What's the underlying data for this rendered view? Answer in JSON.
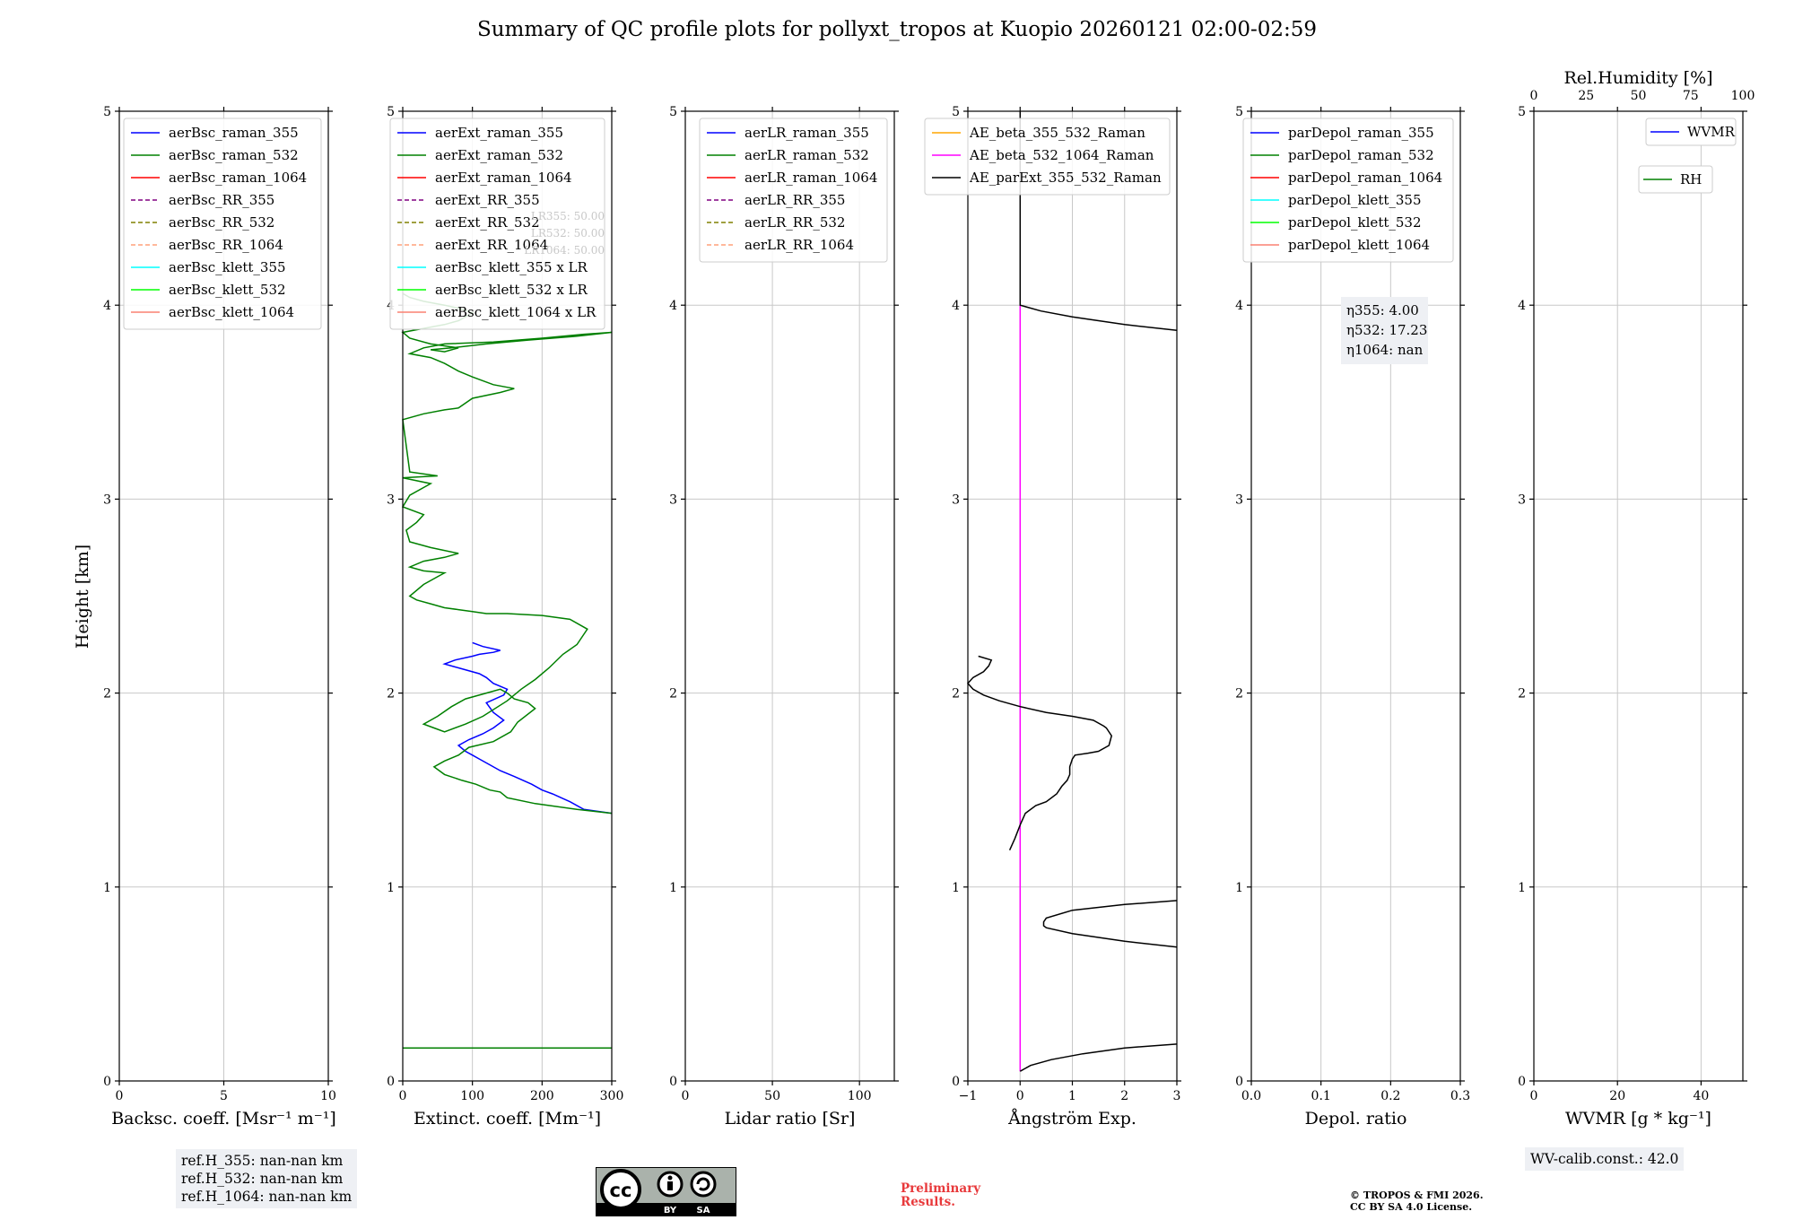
{
  "title": "Summary of QC profile plots for pollyxt_tropos at Kuopio 20260121 02:00-02:59",
  "y_axis_label": "Height [km]",
  "chart_data": [
    {
      "id": "bsc",
      "type": "line",
      "xlabel": "Backsc. coeff. [Msr⁻¹ m⁻¹]",
      "xlim": [
        0,
        10
      ],
      "ylim": [
        0,
        5
      ],
      "xticks": [
        0,
        5,
        10
      ],
      "yticks": [
        0,
        1,
        2,
        3,
        4,
        5
      ],
      "grid": true,
      "legend": {
        "position": "top-right",
        "entries": [
          {
            "label": "aerBsc_raman_355",
            "color": "#0000ff",
            "style": "solid"
          },
          {
            "label": "aerBsc_raman_532",
            "color": "#008000",
            "style": "solid"
          },
          {
            "label": "aerBsc_raman_1064",
            "color": "#ff0000",
            "style": "solid"
          },
          {
            "label": "aerBsc_RR_355",
            "color": "#800080",
            "style": "dashed"
          },
          {
            "label": "aerBsc_RR_532",
            "color": "#808000",
            "style": "dashed"
          },
          {
            "label": "aerBsc_RR_1064",
            "color": "#ffa07a",
            "style": "dashed"
          },
          {
            "label": "aerBsc_klett_355",
            "color": "#00ffff",
            "style": "solid"
          },
          {
            "label": "aerBsc_klett_532",
            "color": "#00ff00",
            "style": "solid"
          },
          {
            "label": "aerBsc_klett_1064",
            "color": "#fa8072",
            "style": "solid"
          }
        ]
      },
      "series": []
    },
    {
      "id": "ext",
      "type": "line",
      "xlabel": "Extinct. coeff. [Mm⁻¹]",
      "xlim": [
        0,
        300
      ],
      "ylim": [
        0,
        5
      ],
      "xticks": [
        0,
        100,
        200,
        300
      ],
      "yticks": [
        0,
        1,
        2,
        3,
        4,
        5
      ],
      "grid": true,
      "legend": {
        "position": "top-right",
        "entries": [
          {
            "label": "aerExt_raman_355",
            "color": "#0000ff",
            "style": "solid"
          },
          {
            "label": "aerExt_raman_532",
            "color": "#008000",
            "style": "solid"
          },
          {
            "label": "aerExt_raman_1064",
            "color": "#ff0000",
            "style": "solid"
          },
          {
            "label": "aerExt_RR_355",
            "color": "#800080",
            "style": "dashed"
          },
          {
            "label": "aerExt_RR_532",
            "color": "#808000",
            "style": "dashed"
          },
          {
            "label": "aerExt_RR_1064",
            "color": "#ffa07a",
            "style": "dashed"
          },
          {
            "label": "aerBsc_klett_355 x LR",
            "color": "#00ffff",
            "style": "solid"
          },
          {
            "label": "aerBsc_klett_532 x LR",
            "color": "#00ff00",
            "style": "solid"
          },
          {
            "label": "aerBsc_klett_1064 x LR",
            "color": "#fa8072",
            "style": "solid"
          }
        ]
      },
      "annotation": [
        "LR355: 50.00",
        "LR532: 50.00",
        "LR1064: 50.00"
      ],
      "series": [
        {
          "name": "aerExt_raman_355",
          "color": "#0000ff",
          "x": [
            300,
            260,
            240,
            215,
            200,
            185,
            160,
            140,
            125,
            110,
            100,
            90,
            80,
            95,
            115,
            130,
            145,
            130,
            120,
            145,
            150,
            130,
            120,
            110,
            80,
            60,
            75,
            100,
            110,
            130,
            140,
            115,
            100
          ],
          "y": [
            1.38,
            1.4,
            1.44,
            1.48,
            1.5,
            1.53,
            1.57,
            1.6,
            1.63,
            1.66,
            1.68,
            1.7,
            1.73,
            1.76,
            1.79,
            1.82,
            1.86,
            1.9,
            1.95,
            1.99,
            2.02,
            2.05,
            2.08,
            2.1,
            2.13,
            2.15,
            2.17,
            2.19,
            2.2,
            2.21,
            2.22,
            2.24,
            2.26
          ]
        },
        {
          "name": "aerExt_raman_532",
          "color": "#008000",
          "x": [
            300,
            250,
            190,
            150,
            140,
            125,
            105,
            85,
            60,
            45,
            60,
            80,
            95,
            130,
            155,
            165,
            190,
            180,
            160,
            150,
            140,
            120,
            90,
            70,
            50,
            30,
            45,
            60,
            90,
            115,
            150,
            170,
            190,
            210,
            230,
            250,
            265,
            240,
            200,
            150,
            120,
            100,
            80,
            60,
            40,
            20,
            10,
            30,
            50,
            60,
            30,
            10,
            30,
            60,
            80,
            40,
            10,
            5,
            20,
            30,
            0,
            10,
            40,
            0,
            50,
            10,
            0,
            30,
            60,
            80,
            100,
            140,
            160,
            130,
            100,
            80,
            60,
            40,
            10,
            30,
            60,
            130,
            200,
            260,
            300,
            250,
            180,
            120,
            70,
            40,
            60,
            80,
            40,
            10,
            0,
            30,
            60,
            80,
            90,
            100,
            85,
            60,
            30,
            10,
            0
          ],
          "y": [
            1.38,
            1.4,
            1.43,
            1.46,
            1.49,
            1.5,
            1.53,
            1.55,
            1.58,
            1.62,
            1.65,
            1.68,
            1.72,
            1.75,
            1.8,
            1.85,
            1.92,
            1.95,
            1.97,
            2.0,
            2.02,
            2.0,
            1.97,
            1.93,
            1.88,
            1.84,
            1.82,
            1.8,
            1.84,
            1.88,
            1.96,
            2.02,
            2.07,
            2.13,
            2.2,
            2.25,
            2.33,
            2.38,
            2.4,
            2.41,
            2.41,
            2.42,
            2.43,
            2.44,
            2.46,
            2.48,
            2.5,
            2.56,
            2.6,
            2.62,
            2.63,
            2.65,
            2.68,
            2.7,
            2.72,
            2.75,
            2.78,
            2.84,
            2.88,
            2.92,
            2.96,
            3.02,
            3.08,
            3.11,
            3.12,
            3.14,
            3.41,
            3.44,
            3.46,
            3.47,
            3.52,
            3.55,
            3.57,
            3.59,
            3.63,
            3.66,
            3.7,
            3.73,
            3.75,
            3.78,
            3.8,
            3.81,
            3.83,
            3.85,
            3.86,
            3.84,
            3.82,
            3.8,
            3.78,
            3.77,
            3.76,
            3.78,
            3.8,
            3.83,
            3.86,
            3.88,
            3.9,
            3.92,
            3.94,
            3.96,
            3.98,
            4.0,
            4.02,
            4.04,
            4.06
          ]
        },
        {
          "name": "aerExt_raman_532_low",
          "color": "#008000",
          "x": [
            0,
            300
          ],
          "y": [
            0.17,
            0.17
          ]
        }
      ]
    },
    {
      "id": "lr",
      "type": "line",
      "xlabel": "Lidar ratio [Sr]",
      "xlim": [
        0,
        120
      ],
      "ylim": [
        0,
        5
      ],
      "xticks": [
        0,
        50,
        100
      ],
      "yticks": [
        0,
        1,
        2,
        3,
        4,
        5
      ],
      "grid": true,
      "legend": {
        "position": "top-right",
        "entries": [
          {
            "label": "aerLR_raman_355",
            "color": "#0000ff",
            "style": "solid"
          },
          {
            "label": "aerLR_raman_532",
            "color": "#008000",
            "style": "solid"
          },
          {
            "label": "aerLR_raman_1064",
            "color": "#ff0000",
            "style": "solid"
          },
          {
            "label": "aerLR_RR_355",
            "color": "#800080",
            "style": "dashed"
          },
          {
            "label": "aerLR_RR_532",
            "color": "#808000",
            "style": "dashed"
          },
          {
            "label": "aerLR_RR_1064",
            "color": "#ffa07a",
            "style": "dashed"
          }
        ]
      },
      "series": []
    },
    {
      "id": "ae",
      "type": "line",
      "xlabel": "Ångström Exp.",
      "xlim": [
        -1,
        3
      ],
      "ylim": [
        0,
        5
      ],
      "xticks": [
        -1,
        0,
        1,
        2,
        3
      ],
      "xtick_labels": [
        "−1",
        "0",
        "1",
        "2",
        "3"
      ],
      "yticks": [
        0,
        1,
        2,
        3,
        4,
        5
      ],
      "grid": true,
      "legend": {
        "position": "top-right",
        "entries": [
          {
            "label": "AE_beta_355_532_Raman",
            "color": "#ffa500",
            "style": "solid"
          },
          {
            "label": "AE_beta_532_1064_Raman",
            "color": "#ff00ff",
            "style": "solid"
          },
          {
            "label": "AE_parExt_355_532_Raman",
            "color": "#000000",
            "style": "solid"
          }
        ]
      },
      "series": [
        {
          "name": "AE_beta_532_1064_Raman",
          "color": "#ff00ff",
          "x": [
            0,
            0
          ],
          "y": [
            0.05,
            4.0
          ]
        },
        {
          "name": "AE_parExt_upper",
          "color": "#000000",
          "x": [
            0,
            0,
            0.4,
            1.0,
            2.0,
            3.0
          ],
          "y": [
            5.0,
            4.0,
            3.97,
            3.94,
            3.9,
            3.87
          ]
        },
        {
          "name": "AE_parExt_mid",
          "color": "#000000",
          "x": [
            -0.2,
            -0.1,
            0.0,
            0.1,
            0.3,
            0.5,
            0.7,
            0.8,
            0.9,
            0.95,
            0.95,
            1.0,
            1.05,
            1.3,
            1.5,
            1.7,
            1.75,
            1.65,
            1.6,
            1.4,
            1.0,
            0.5,
            0.0,
            -0.4,
            -0.7,
            -0.9,
            -1.0,
            -0.9,
            -0.7,
            -0.6,
            -0.55,
            -0.8
          ],
          "y": [
            1.19,
            1.25,
            1.32,
            1.38,
            1.42,
            1.44,
            1.48,
            1.52,
            1.55,
            1.58,
            1.62,
            1.66,
            1.68,
            1.69,
            1.7,
            1.73,
            1.78,
            1.82,
            1.83,
            1.86,
            1.88,
            1.9,
            1.93,
            1.96,
            1.99,
            2.02,
            2.05,
            2.08,
            2.11,
            2.14,
            2.17,
            2.19
          ]
        },
        {
          "name": "AE_parExt_loop",
          "color": "#000000",
          "x": [
            3.0,
            2.0,
            1.0,
            0.5,
            0.45,
            0.45,
            0.5,
            1.0,
            2.0,
            3.0
          ],
          "y": [
            0.93,
            0.91,
            0.88,
            0.84,
            0.82,
            0.8,
            0.79,
            0.76,
            0.72,
            0.69
          ]
        },
        {
          "name": "AE_parExt_low",
          "color": "#000000",
          "x": [
            0.0,
            0.2,
            0.6,
            1.2,
            2.0,
            3.0
          ],
          "y": [
            0.05,
            0.08,
            0.11,
            0.14,
            0.17,
            0.19
          ]
        }
      ]
    },
    {
      "id": "dep",
      "type": "line",
      "xlabel": "Depol. ratio",
      "xlim": [
        0,
        0.3
      ],
      "ylim": [
        0,
        5
      ],
      "xticks": [
        0,
        0.1,
        0.2,
        0.3
      ],
      "xtick_labels": [
        "0.0",
        "0.1",
        "0.2",
        "0.3"
      ],
      "yticks": [
        0,
        1,
        2,
        3,
        4,
        5
      ],
      "grid": true,
      "legend": {
        "position": "top-right",
        "entries": [
          {
            "label": "parDepol_raman_355",
            "color": "#0000ff",
            "style": "solid"
          },
          {
            "label": "parDepol_raman_532",
            "color": "#008000",
            "style": "solid"
          },
          {
            "label": "parDepol_raman_1064",
            "color": "#ff0000",
            "style": "solid"
          },
          {
            "label": "parDepol_klett_355",
            "color": "#00ffff",
            "style": "solid"
          },
          {
            "label": "parDepol_klett_532",
            "color": "#00ff00",
            "style": "solid"
          },
          {
            "label": "parDepol_klett_1064",
            "color": "#fa8072",
            "style": "solid"
          }
        ]
      },
      "annotation": [
        "η355: 4.00",
        "η532: 17.23",
        "η1064: nan"
      ],
      "series": []
    },
    {
      "id": "wv",
      "type": "line",
      "xlabel": "WVMR [g * kg⁻¹]",
      "top_xlabel": "Rel.Humidity [%]",
      "xlim": [
        0,
        50
      ],
      "ylim": [
        0,
        5
      ],
      "xticks": [
        0,
        20,
        40
      ],
      "top_xlim": [
        0,
        100
      ],
      "top_xticks": [
        0,
        25,
        50,
        75,
        100
      ],
      "yticks": [
        0,
        1,
        2,
        3,
        4,
        5
      ],
      "grid": true,
      "legend": {
        "position": "top-right",
        "entries": [
          {
            "label": "WVMR",
            "color": "#0000ff",
            "style": "solid"
          },
          {
            "label": "RH",
            "color": "#008000",
            "style": "solid"
          }
        ]
      },
      "series": []
    }
  ],
  "ref_heights": [
    "ref.H_355: nan-nan km",
    "ref.H_532: nan-nan km",
    "ref.H_1064: nan-nan km"
  ],
  "wv_calib": "WV-calib.const.: 42.0",
  "cc_license": {
    "logo": "cc",
    "by": "BY",
    "sa": "SA"
  },
  "preliminary": [
    "Preliminary",
    "Results."
  ],
  "copyright": [
    "© TROPOS & FMI 2026.",
    "CC BY SA 4.0 License."
  ]
}
